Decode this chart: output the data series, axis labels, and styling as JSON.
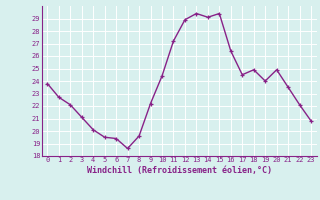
{
  "x": [
    0,
    1,
    2,
    3,
    4,
    5,
    6,
    7,
    8,
    9,
    10,
    11,
    12,
    13,
    14,
    15,
    16,
    17,
    18,
    19,
    20,
    21,
    22,
    23
  ],
  "y": [
    23.8,
    22.7,
    22.1,
    21.1,
    20.1,
    19.5,
    19.4,
    18.6,
    19.6,
    22.2,
    24.4,
    27.2,
    28.9,
    29.4,
    29.1,
    29.4,
    26.4,
    24.5,
    24.9,
    24.0,
    24.9,
    23.5,
    22.1,
    20.8
  ],
  "ylim": [
    18,
    30
  ],
  "yticks": [
    18,
    19,
    20,
    21,
    22,
    23,
    24,
    25,
    26,
    27,
    28,
    29
  ],
  "xticks": [
    0,
    1,
    2,
    3,
    4,
    5,
    6,
    7,
    8,
    9,
    10,
    11,
    12,
    13,
    14,
    15,
    16,
    17,
    18,
    19,
    20,
    21,
    22,
    23
  ],
  "xlabel": "Windchill (Refroidissement éolien,°C)",
  "line_color": "#882288",
  "marker": "+",
  "bg_color": "#d8f0ee",
  "grid_color": "#ffffff",
  "tick_label_color": "#882288",
  "xlabel_color": "#882288",
  "tick_fontsize": 5.0,
  "xlabel_fontsize": 6.0,
  "linewidth": 1.0,
  "markersize": 3.5
}
